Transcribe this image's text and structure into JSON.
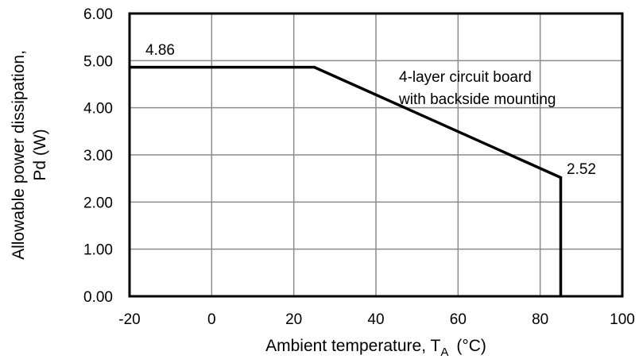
{
  "chart_data": {
    "type": "line",
    "xlabel_main": "Ambient temperature, T",
    "xlabel_sub": "A",
    "xlabel_unit": "(°C)",
    "ylabel_line1": "Allowable power dissipation,",
    "ylabel_line2": "Pd (W)",
    "xlim": [
      -20,
      100
    ],
    "ylim": [
      0,
      6
    ],
    "x_ticks": [
      "-20",
      "0",
      "20",
      "40",
      "60",
      "80",
      "100"
    ],
    "y_ticks": [
      "0.00",
      "1.00",
      "2.00",
      "3.00",
      "4.00",
      "5.00",
      "6.00"
    ],
    "grid": true,
    "series": [
      {
        "x": [
          -20,
          25,
          85,
          85
        ],
        "y": [
          4.86,
          4.86,
          2.52,
          0
        ]
      }
    ],
    "annotations": {
      "max_value_label": "4.86",
      "min_value_label": "2.52",
      "board_line1": "4-layer circuit board",
      "board_line2": "with backside mounting"
    }
  }
}
